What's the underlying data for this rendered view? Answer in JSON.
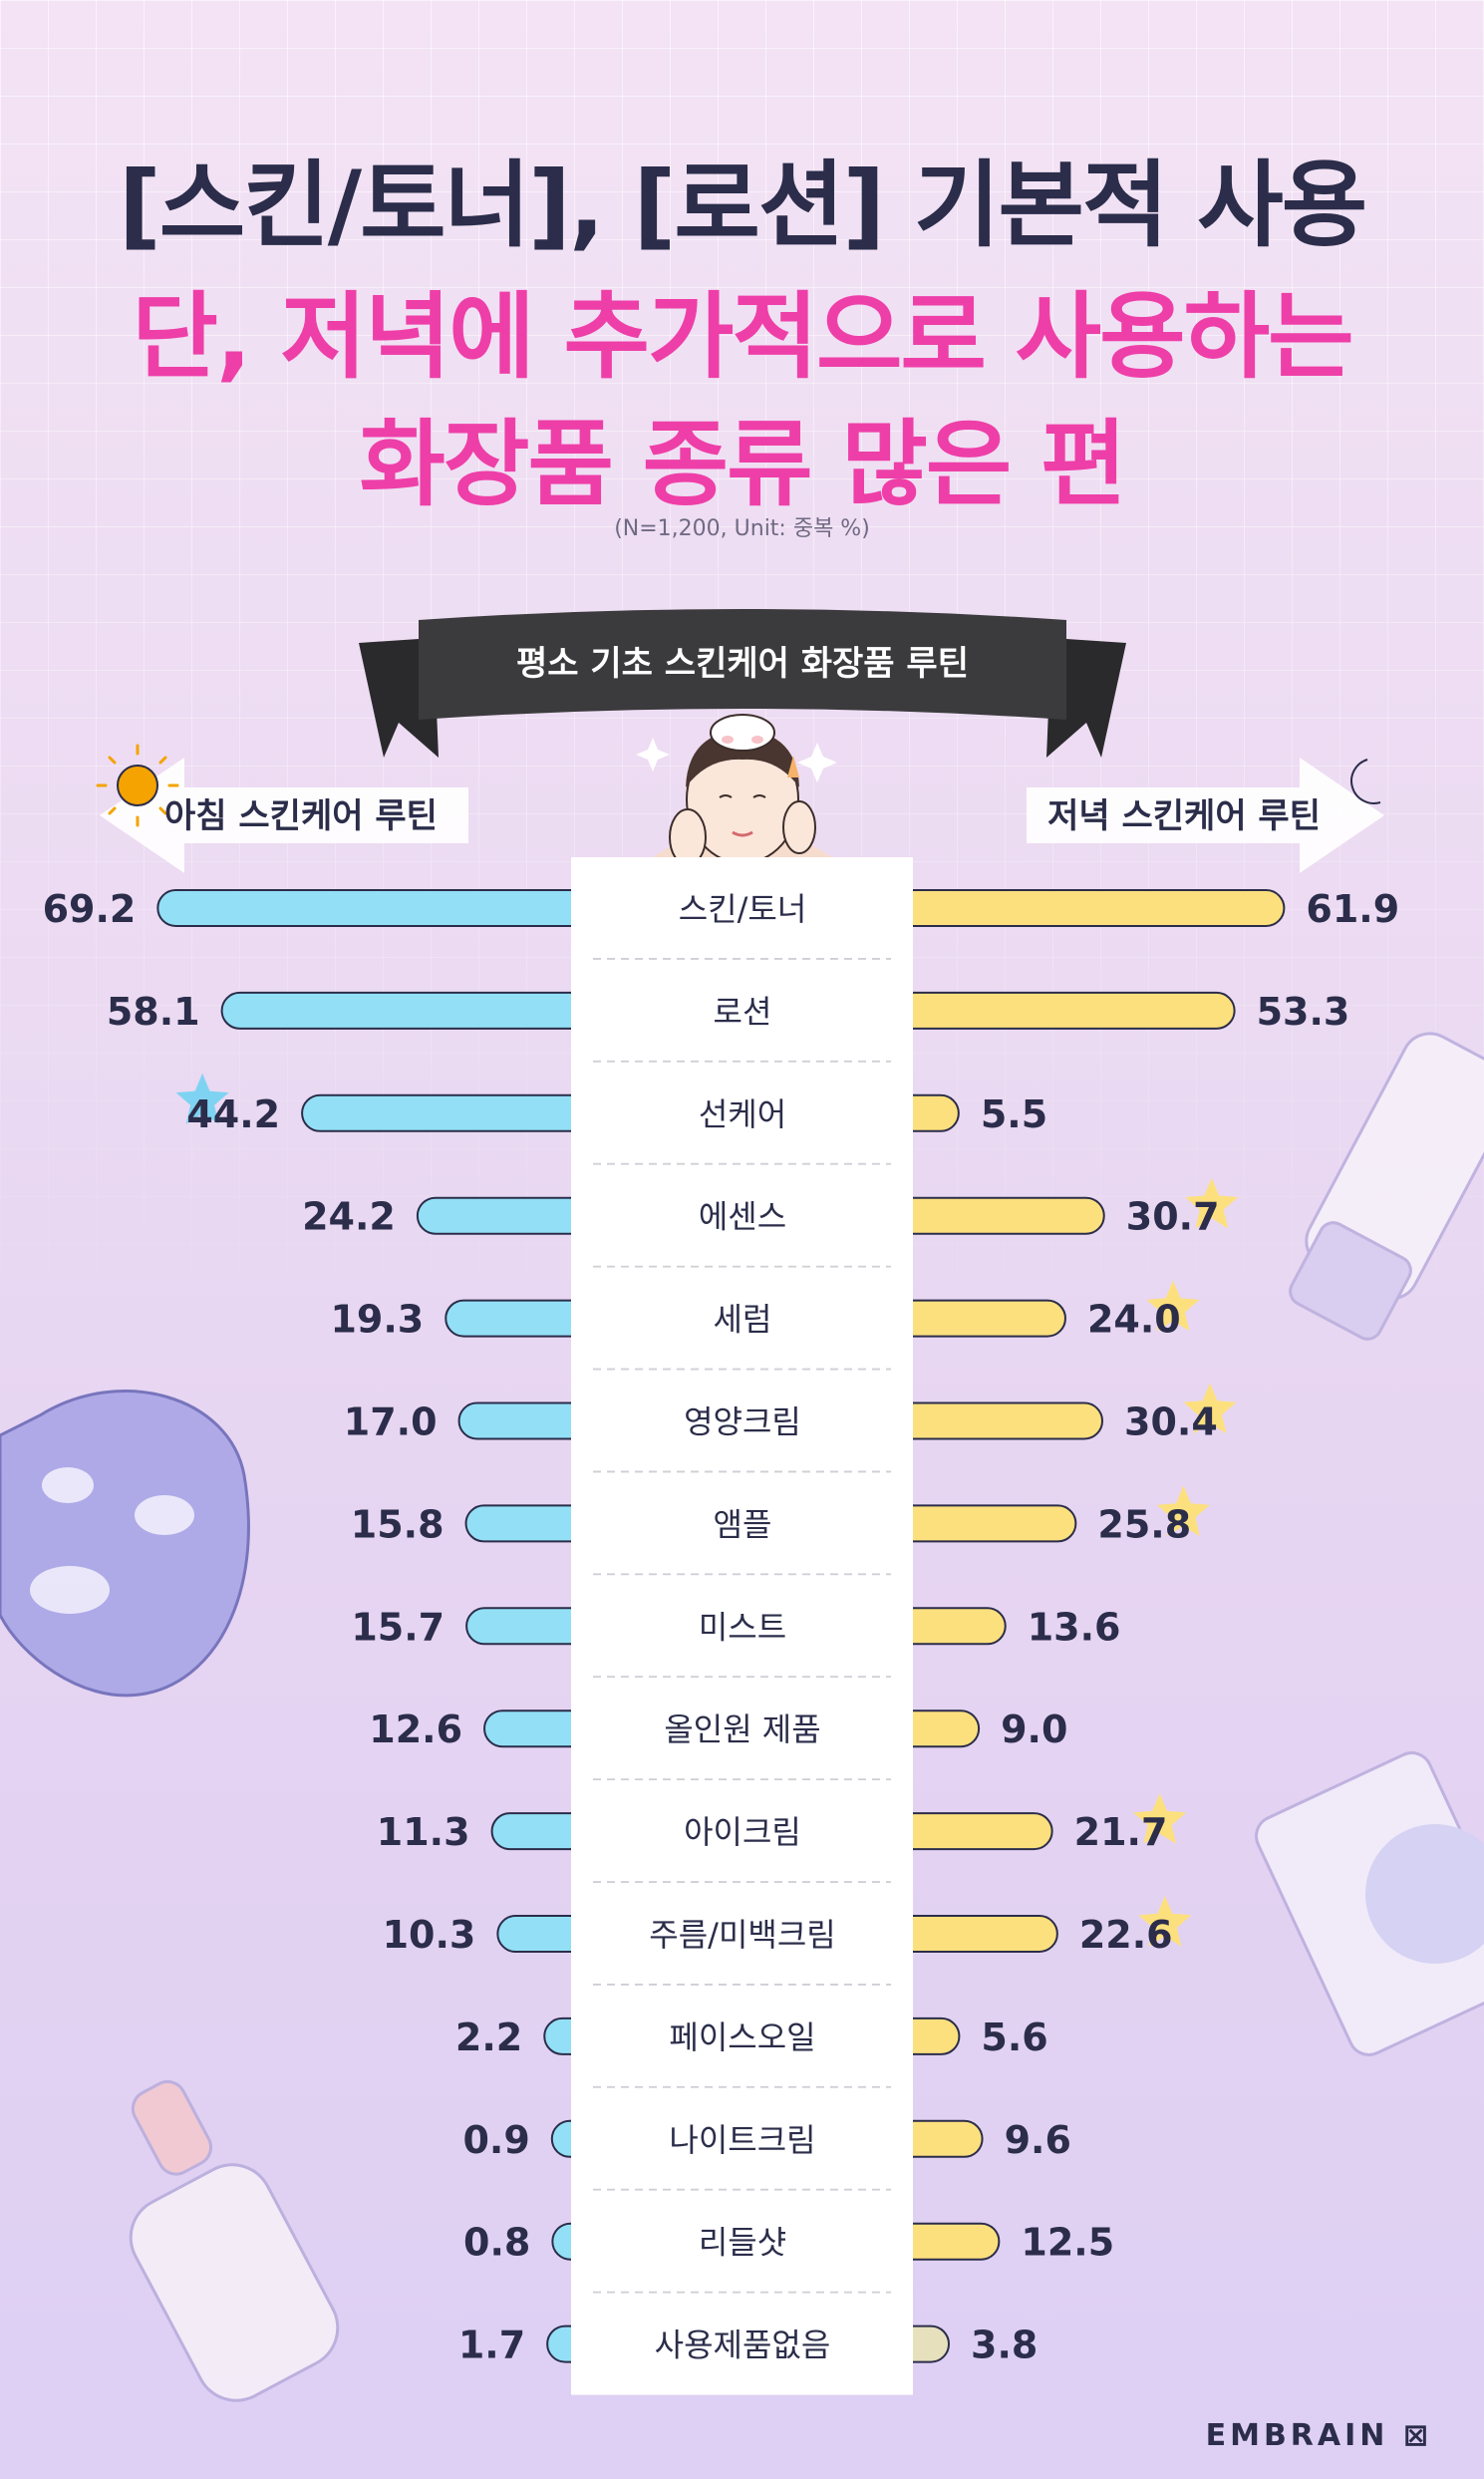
{
  "title": {
    "line1": "[스킨/토너], [로션] 기본적 사용",
    "line2": "단, 저녁에 추가적으로 사용하는",
    "line3": "화장품 종류 많은 편"
  },
  "note": "(N=1,200, Unit: 중복 %)",
  "banner": "평소 기초 스킨케어 화장품 루틴",
  "brand": "EMBRAIN",
  "colors": {
    "morning": "#93e0f6",
    "evening": "#fde07e",
    "accent": "#ee3fa8",
    "dark": "#2b2d4a",
    "banner": "#3b3b3d"
  },
  "chart_data": {
    "type": "bar",
    "categories": [
      "스킨/토너",
      "로션",
      "선케어",
      "에센스",
      "세럼",
      "영양크림",
      "앰플",
      "미스트",
      "올인원 제품",
      "아이크림",
      "주름/미백크림",
      "페이스오일",
      "나이트크림",
      "리들샷",
      "사용제품없음"
    ],
    "series": [
      {
        "name": "아침 스킨케어 루틴",
        "values": [
          69.2,
          58.1,
          44.2,
          24.2,
          19.3,
          17.0,
          15.8,
          15.7,
          12.6,
          11.3,
          10.3,
          2.2,
          0.9,
          0.8,
          1.7
        ],
        "labels": [
          "69.2",
          "58.1",
          "44.2",
          "24.2",
          "19.3",
          "17.0",
          "15.8",
          "15.7",
          "12.6",
          "11.3",
          "10.3",
          "2.2",
          "0.9",
          "0.8",
          "1.7"
        ],
        "highlight": [
          2
        ]
      },
      {
        "name": "저녁 스킨케어 루틴",
        "values": [
          61.9,
          53.3,
          5.5,
          30.7,
          24.0,
          30.4,
          25.8,
          13.6,
          9.0,
          21.7,
          22.6,
          5.6,
          9.6,
          12.5,
          3.8
        ],
        "labels": [
          "61.9",
          "53.3",
          "5.5",
          "30.7",
          "24.0",
          "30.4",
          "25.8",
          "13.6",
          "9.0",
          "21.7",
          "22.6",
          "5.6",
          "9.6",
          "12.5",
          "3.8"
        ],
        "highlight": [
          3,
          4,
          5,
          6,
          9,
          10
        ]
      }
    ]
  }
}
